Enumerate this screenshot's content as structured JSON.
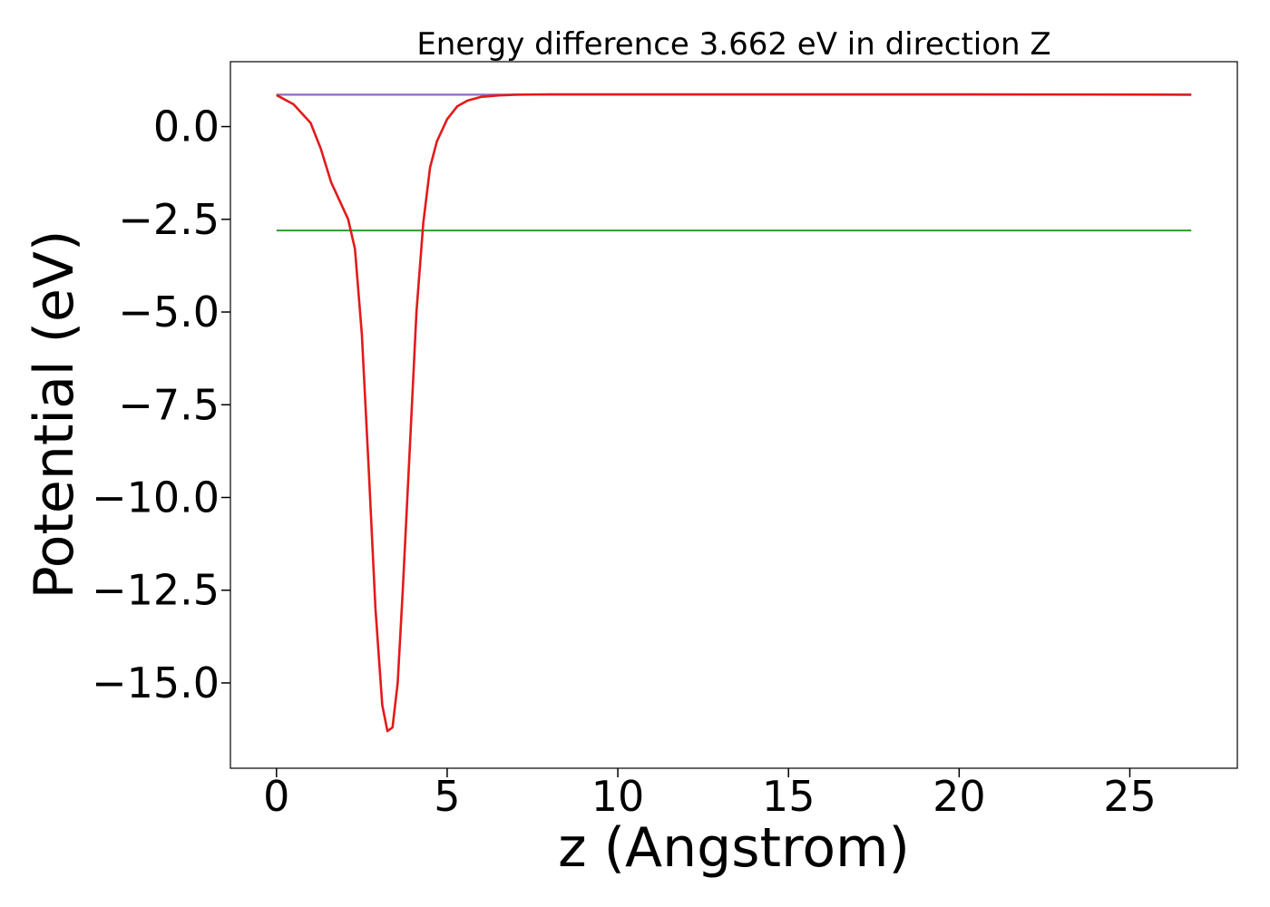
{
  "chart_data": {
    "type": "line",
    "title": "Energy difference 3.662 eV in direction Z",
    "xlabel": "z (Angstrom)",
    "ylabel": "Potential (eV)",
    "xlim": [
      -1.35,
      28.15
    ],
    "ylim": [
      -17.3,
      1.75
    ],
    "x_ticks": [
      0,
      5,
      10,
      15,
      20,
      25
    ],
    "x_tick_labels": [
      "0",
      "5",
      "10",
      "15",
      "20",
      "25"
    ],
    "y_ticks": [
      0.0,
      -2.5,
      -5.0,
      -7.5,
      -10.0,
      -12.5,
      -15.0
    ],
    "y_tick_labels": [
      "0.0",
      "−2.5",
      "−5.0",
      "−7.5",
      "−10.0",
      "−12.5",
      "−15.0"
    ],
    "grid": false,
    "legend": "none",
    "series": [
      {
        "color": "#1f77b4",
        "x": [
          0,
          26.8
        ],
        "y": [
          0.86,
          0.86
        ]
      },
      {
        "color": "#2ca02c",
        "x": [
          0,
          26.8
        ],
        "y": [
          -2.8,
          -2.8
        ]
      },
      {
        "color": "#9467bd",
        "x": [
          0,
          1,
          2,
          3,
          4,
          5,
          6,
          7,
          8,
          10,
          15,
          20,
          26.8
        ],
        "y": [
          0.86,
          0.86,
          0.86,
          0.86,
          0.86,
          0.86,
          0.86,
          0.86,
          0.86,
          0.86,
          0.86,
          0.86,
          0.86
        ]
      },
      {
        "color": "#e31a1c",
        "x": [
          0.0,
          0.5,
          1.0,
          1.3,
          1.6,
          1.9,
          2.1,
          2.3,
          2.5,
          2.7,
          2.9,
          3.1,
          3.25,
          3.4,
          3.55,
          3.7,
          3.9,
          4.1,
          4.3,
          4.5,
          4.7,
          5.0,
          5.3,
          5.6,
          6.0,
          6.5,
          7.0,
          8.0,
          10.0,
          15.0,
          20.0,
          26.8
        ],
        "y": [
          0.85,
          0.6,
          0.1,
          -0.6,
          -1.5,
          -2.1,
          -2.5,
          -3.3,
          -5.6,
          -9.2,
          -13.0,
          -15.6,
          -16.3,
          -16.2,
          -15.0,
          -12.5,
          -8.8,
          -5.0,
          -2.6,
          -1.1,
          -0.4,
          0.2,
          0.55,
          0.7,
          0.8,
          0.84,
          0.86,
          0.87,
          0.87,
          0.87,
          0.87,
          0.86
        ]
      }
    ]
  }
}
